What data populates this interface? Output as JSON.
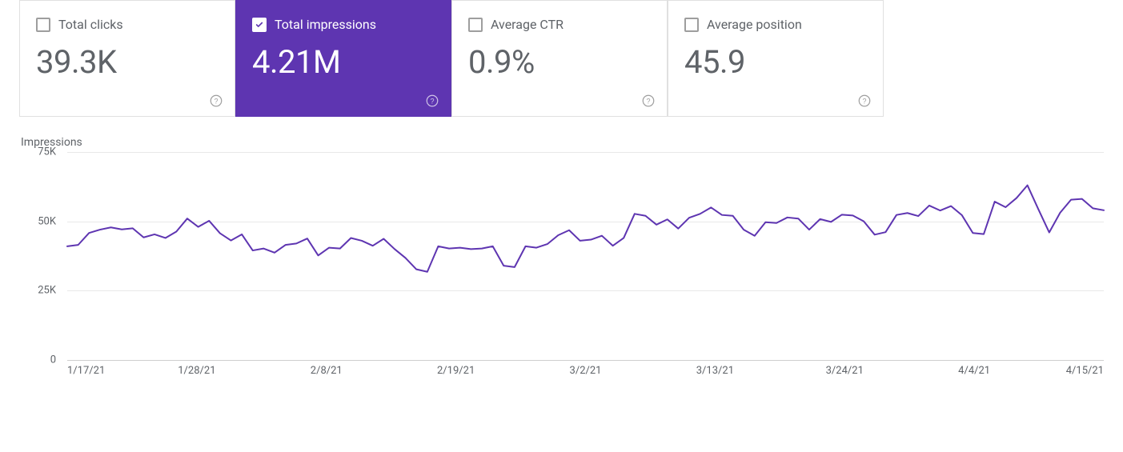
{
  "cards": [
    {
      "id": "total-clicks",
      "label": "Total clicks",
      "value": "39.3K",
      "selected": false
    },
    {
      "id": "total-impressions",
      "label": "Total impressions",
      "value": "4.21M",
      "selected": true
    },
    {
      "id": "average-ctr",
      "label": "Average CTR",
      "value": "0.9%",
      "selected": false
    },
    {
      "id": "average-position",
      "label": "Average position",
      "value": "45.9",
      "selected": false
    }
  ],
  "chart": {
    "type": "line",
    "title": "Impressions",
    "y_axis_title": "Impressions",
    "ylim": [
      0,
      75000
    ],
    "ytick_step": 25000,
    "yticks": [
      {
        "value": 0,
        "label": "0"
      },
      {
        "value": 25000,
        "label": "25K"
      },
      {
        "value": 50000,
        "label": "50K"
      },
      {
        "value": 75000,
        "label": "75K"
      }
    ],
    "x_labels": [
      "1/17/21",
      "1/28/21",
      "2/8/21",
      "2/19/21",
      "3/2/21",
      "3/13/21",
      "3/24/21",
      "4/4/21",
      "4/15/21"
    ],
    "line_color": "#5e35b1",
    "line_width": 2,
    "grid_color": "#e8e8e8",
    "baseline_color": "#cfcfcf",
    "background_color": "#ffffff",
    "title_fontsize": 14,
    "label_fontsize": 13,
    "values": [
      41000,
      41500,
      45800,
      47000,
      47800,
      47100,
      47500,
      44200,
      45300,
      44000,
      46300,
      51000,
      48000,
      50200,
      45700,
      43100,
      45300,
      39500,
      40200,
      38700,
      41500,
      42000,
      43800,
      37700,
      40500,
      40200,
      44000,
      43000,
      41200,
      43700,
      40000,
      36800,
      32700,
      31800,
      41000,
      40200,
      40500,
      40000,
      40200,
      41000,
      34000,
      33500,
      41000,
      40500,
      41800,
      45000,
      46800,
      43000,
      43400,
      44800,
      41200,
      44000,
      52700,
      52000,
      48800,
      50700,
      47400,
      51300,
      52700,
      55000,
      52300,
      52000,
      47000,
      44800,
      49700,
      49400,
      51400,
      51000,
      47000,
      50800,
      49800,
      52400,
      52100,
      50000,
      45200,
      46100,
      52300,
      53000,
      51900,
      55700,
      53900,
      55500,
      52200,
      45800,
      45400,
      57100,
      55100,
      58400,
      63000,
      54400,
      46000,
      53100,
      57800,
      58100,
      54700,
      54000
    ]
  },
  "colors": {
    "selected_card_bg": "#5e35b1",
    "text_muted": "#5f6368",
    "card_border": "#e0e0e0"
  }
}
